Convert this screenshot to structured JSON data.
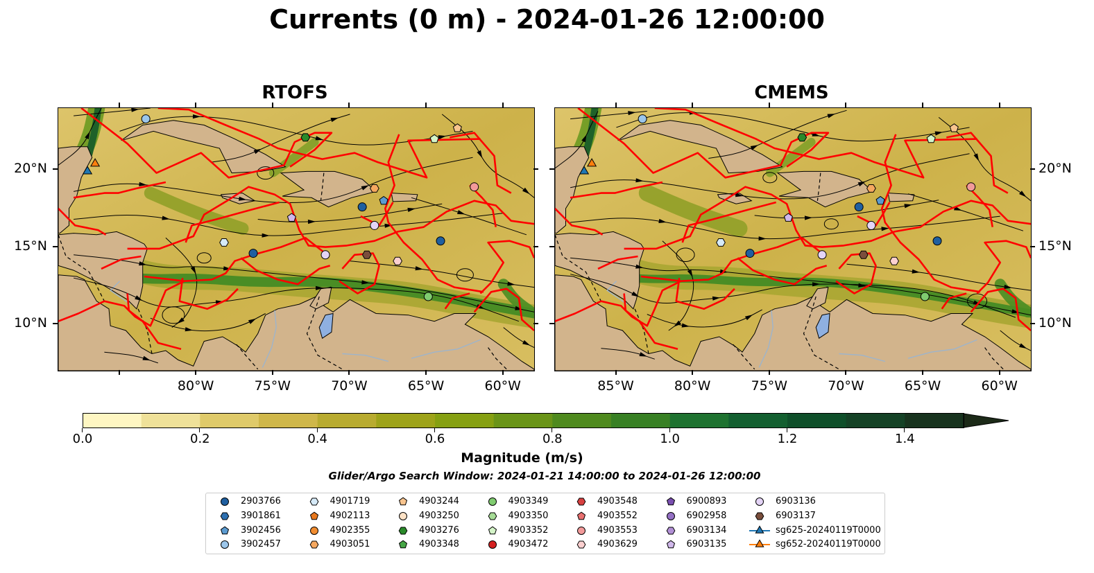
{
  "title": "Currents (0 m) - 2024-01-26 12:00:00",
  "panels": [
    {
      "title": "RTOFS"
    },
    {
      "title": "CMEMS"
    }
  ],
  "map": {
    "lon_range": [
      -89,
      -58
    ],
    "lat_range": [
      7,
      24
    ],
    "x_ticks": [
      "85°W",
      "80°W",
      "75°W",
      "70°W",
      "65°W",
      "60°W"
    ],
    "y_ticks": [
      "20°N",
      "15°N",
      "10°N"
    ],
    "land_color": "#d2b48c",
    "lake_color": "#8fb0e0",
    "eez_color": "#ff0000"
  },
  "colorbar": {
    "label": "Magnitude (m/s)",
    "min": 0.0,
    "max": 1.5,
    "extend": "max",
    "ticks": [
      "0.0",
      "0.2",
      "0.4",
      "0.6",
      "0.8",
      "1.0",
      "1.2",
      "1.4"
    ],
    "colors": [
      "#fef6c2",
      "#efe199",
      "#dfca6a",
      "#cfb74a",
      "#b8ab30",
      "#9ea31a",
      "#86a012",
      "#6a9418",
      "#4f8a1e",
      "#388024",
      "#1e7230",
      "#135f30",
      "#0f4f2a",
      "#154226",
      "#18331e",
      "#1c2a18"
    ]
  },
  "search_window": "Glider/Argo Search Window: 2024-01-21 14:00:00 to 2024-01-26 12:00:00",
  "legend": [
    {
      "label": "2903766",
      "marker": "circle",
      "color": "#1f5fa0"
    },
    {
      "label": "3901861",
      "marker": "hexagon",
      "color": "#2c6fb0"
    },
    {
      "label": "3902456",
      "marker": "pentagon",
      "color": "#5b9bd0"
    },
    {
      "label": "3902457",
      "marker": "circle",
      "color": "#9cc6ea"
    },
    {
      "label": "4901719",
      "marker": "hexagon",
      "color": "#d6eaf8"
    },
    {
      "label": "4902113",
      "marker": "pentagon",
      "color": "#e8781e"
    },
    {
      "label": "4902355",
      "marker": "circle",
      "color": "#f08c30"
    },
    {
      "label": "4903051",
      "marker": "hexagon",
      "color": "#f5a860"
    },
    {
      "label": "4903244",
      "marker": "pentagon",
      "color": "#f8c48e"
    },
    {
      "label": "4903250",
      "marker": "circle",
      "color": "#fde2c6"
    },
    {
      "label": "4903276",
      "marker": "hexagon",
      "color": "#2a8a2a"
    },
    {
      "label": "4903348",
      "marker": "pentagon",
      "color": "#46a646"
    },
    {
      "label": "4903349",
      "marker": "circle",
      "color": "#80cc70"
    },
    {
      "label": "4903350",
      "marker": "hexagon",
      "color": "#a6dc96"
    },
    {
      "label": "4903352",
      "marker": "pentagon",
      "color": "#d4f4c8"
    },
    {
      "label": "4903472",
      "marker": "circle",
      "color": "#d42020"
    },
    {
      "label": "4903548",
      "marker": "hexagon",
      "color": "#d84040"
    },
    {
      "label": "4903552",
      "marker": "pentagon",
      "color": "#e87070"
    },
    {
      "label": "4903553",
      "marker": "circle",
      "color": "#f29a9a"
    },
    {
      "label": "4903629",
      "marker": "hexagon",
      "color": "#fcd0d0"
    },
    {
      "label": "6900893",
      "marker": "pentagon",
      "color": "#7a4fb0"
    },
    {
      "label": "6902958",
      "marker": "circle",
      "color": "#9470c4"
    },
    {
      "label": "6903134",
      "marker": "hexagon",
      "color": "#b290d6"
    },
    {
      "label": "6903135",
      "marker": "pentagon",
      "color": "#d0b8ea"
    },
    {
      "label": "6903136",
      "marker": "circle",
      "color": "#e4d4f6"
    },
    {
      "label": "6903137",
      "marker": "hexagon",
      "color": "#7a4e3c"
    },
    {
      "label": "sg625-20240119T0000",
      "marker": "triangle",
      "color": "#1f77b4"
    },
    {
      "label": "sg652-20240119T0000",
      "marker": "triangle",
      "color": "#ff7f0e"
    }
  ],
  "floats": [
    {
      "id": "3902457",
      "lon": -83.3,
      "lat": 23.3
    },
    {
      "id": "4903276",
      "lon": -72.9,
      "lat": 22.1
    },
    {
      "id": "4903352",
      "lon": -64.5,
      "lat": 22.0
    },
    {
      "id": "4903244",
      "lon": -63.0,
      "lat": 22.7
    },
    {
      "id": "4903553",
      "lon": -61.9,
      "lat": 18.9
    },
    {
      "id": "4903051",
      "lon": -68.4,
      "lat": 18.8
    },
    {
      "id": "3902456",
      "lon": -67.8,
      "lat": 18.0
    },
    {
      "id": "2903766",
      "lon": -69.2,
      "lat": 17.6
    },
    {
      "id": "6903135",
      "lon": -73.8,
      "lat": 16.9
    },
    {
      "id": "6903136",
      "lon": -68.4,
      "lat": 16.4
    },
    {
      "id": "2903766",
      "lon": -64.1,
      "lat": 15.4
    },
    {
      "id": "4901719",
      "lon": -78.2,
      "lat": 15.3
    },
    {
      "id": "2903766",
      "lon": -76.3,
      "lat": 14.6
    },
    {
      "id": "6903137",
      "lon": -68.9,
      "lat": 14.5
    },
    {
      "id": "4903629",
      "lon": -66.9,
      "lat": 14.1
    },
    {
      "id": "6903136",
      "lon": -71.6,
      "lat": 14.5
    },
    {
      "id": "4903349",
      "lon": -64.9,
      "lat": 11.8
    }
  ],
  "gliders": [
    {
      "id": "sg625-20240119T0000",
      "lon": -87.1,
      "lat": 19.9
    },
    {
      "id": "sg652-20240119T0000",
      "lon": -86.6,
      "lat": 20.4
    }
  ]
}
